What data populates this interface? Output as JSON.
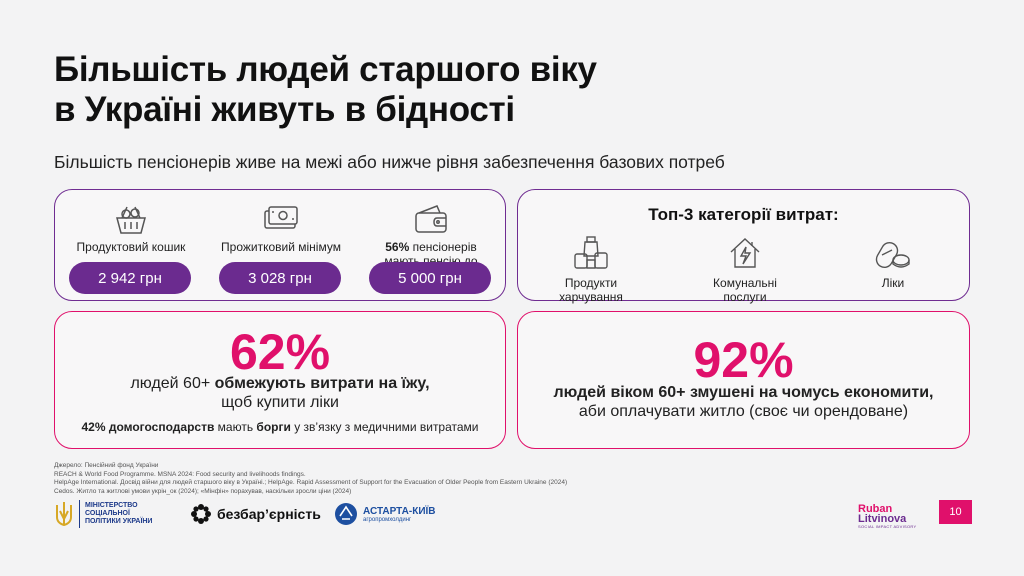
{
  "title": {
    "line1": "Більшість людей старшого віку",
    "line2": "в Україні живуть в бідності"
  },
  "subtitle": "Більшість пенсіонерів живе на межі або нижче рівня забезпечення базових потреб",
  "costs": [
    {
      "icon": "grocery-basket-icon",
      "label": "Продуктовий кошик",
      "value": "2 942 грн"
    },
    {
      "icon": "cash-icon",
      "label": "Прожитковий мінімум",
      "value": "3 028 грн"
    },
    {
      "icon": "wallet-icon",
      "label_bold": "56%",
      "label": " пенсіонерів мають пенсію до",
      "value": "5 000 грн"
    }
  ],
  "top3": {
    "title": "Топ-3 категорії витрат:",
    "items": [
      {
        "icon": "food-products-icon",
        "label": "Продукти харчування"
      },
      {
        "icon": "utilities-house-icon",
        "label": "Комунальні послуги"
      },
      {
        "icon": "pills-icon",
        "label": "Ліки"
      }
    ]
  },
  "stat1": {
    "value": "62%",
    "line1_prefix": "людей 60+ ",
    "line1_bold": "обмежують витрати на їжу,",
    "line2": "щоб купити ліки",
    "note_bold1": "42% домогосподарств",
    "note_mid": " мають ",
    "note_bold2": "борги",
    "note_end": " у зв’язку з медичними витратами"
  },
  "stat2": {
    "value": "92%",
    "line1_bold": "людей віком 60+ змушені на чомусь економити,",
    "line2": "аби оплачувати житло (своє чи орендоване)"
  },
  "sources": [
    "Джерело: Пенсійний фонд України",
    "REACH & World Food Programme. MSNA 2024: Food security and livelihoods findings.",
    "HelpAge International. Досвід війни для людей старшого віку в Україні.; HelpAge. Rapid Assessment of Support for the Evacuation of Older People from Eastern Ukraine (2024)",
    "Cedos. Житло та житлові умови укрін_ок (2024); «Мінфін» порахував, наскільки зросли ціни (2024)"
  ],
  "logos": {
    "ministry": "Міністерство соціальної політики України",
    "bezbar": "безбар’єрність",
    "astarta_name": "АСТАРТА-КИЇВ",
    "astarta_sub": "агропромхолдинг",
    "ruban1": "Ruban",
    "ruban2": "Litvinova",
    "ruban_sub": "SOCIAL IMPACT ADVISORY"
  },
  "page_number": "10",
  "colors": {
    "purple": "#6b2b8f",
    "pink": "#e0106b",
    "background": "#f3f3f4"
  }
}
